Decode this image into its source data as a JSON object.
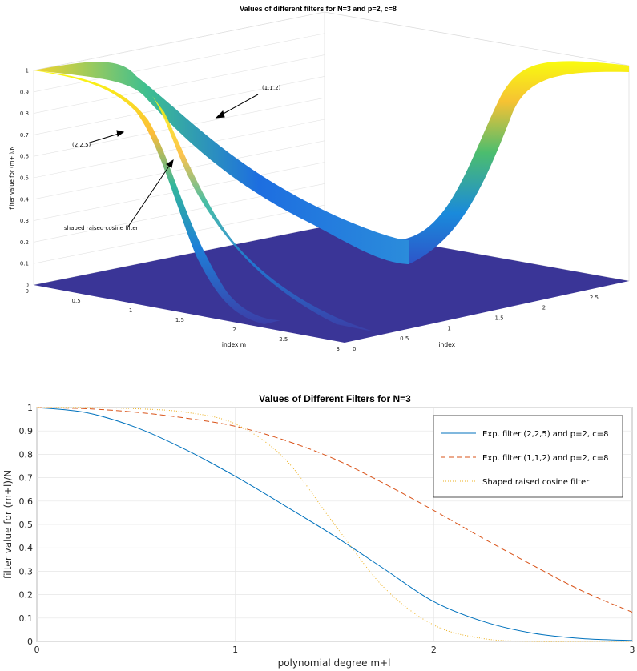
{
  "chart_data": [
    {
      "type": "surface",
      "title": "Values of different filters for N=3 and p=2, c=8",
      "xlabel": "index m",
      "ylabel": "index l",
      "zlabel": "filter value for (m+l)/N",
      "xlim": [
        0,
        3
      ],
      "ylim": [
        0,
        3
      ],
      "zlim": [
        0,
        1
      ],
      "x_ticks": [
        "0",
        "0.5",
        "1",
        "1.5",
        "2",
        "2.5",
        "3"
      ],
      "y_ticks": [
        "0",
        "0.5",
        "1",
        "1.5",
        "2",
        "2.5"
      ],
      "z_ticks": [
        "0",
        "0.1",
        "0.2",
        "0.3",
        "0.4",
        "0.5",
        "0.6",
        "0.7",
        "0.8",
        "0.9",
        "1"
      ],
      "colormap": "parula",
      "annotations": [
        {
          "text": "(1,1,2)"
        },
        {
          "text": "(2,2,5)"
        },
        {
          "text": "shaped raised cosine filter"
        }
      ],
      "grid": true
    },
    {
      "type": "line",
      "title": "Values of Different Filters for N=3",
      "xlabel": "polynomial degree m+l",
      "ylabel": "filter value for (m+l)/N",
      "xlim": [
        0,
        3
      ],
      "ylim": [
        0,
        1
      ],
      "x_ticks": [
        "0",
        "1",
        "2",
        "3"
      ],
      "y_ticks": [
        "0",
        "0.1",
        "0.2",
        "0.3",
        "0.4",
        "0.5",
        "0.6",
        "0.7",
        "0.8",
        "0.9",
        "1"
      ],
      "x": [
        0,
        0.25,
        0.5,
        0.75,
        1.0,
        1.25,
        1.5,
        1.75,
        2.0,
        2.25,
        2.5,
        2.75,
        3.0
      ],
      "series": [
        {
          "name": "Exp. filter (2,2,5) and p=2, c=8",
          "color": "#0072bd",
          "style": "solid",
          "values": [
            1.0,
            0.978,
            0.915,
            0.82,
            0.706,
            0.58,
            0.45,
            0.31,
            0.17,
            0.085,
            0.035,
            0.012,
            0.004
          ]
        },
        {
          "name": "Exp. filter (1,1,2) and p=2, c=8",
          "color": "#d95319",
          "style": "dashed",
          "values": [
            1.0,
            0.995,
            0.98,
            0.955,
            0.92,
            0.86,
            0.78,
            0.675,
            0.56,
            0.44,
            0.325,
            0.215,
            0.125
          ]
        },
        {
          "name": "Shaped raised cosine filter",
          "color": "#edb120",
          "style": "dotted",
          "values": [
            1.0,
            1.0,
            0.995,
            0.98,
            0.93,
            0.78,
            0.5,
            0.23,
            0.07,
            0.012,
            0.0,
            0.0,
            0.0
          ]
        }
      ],
      "legend": "top-right",
      "grid": true
    }
  ]
}
